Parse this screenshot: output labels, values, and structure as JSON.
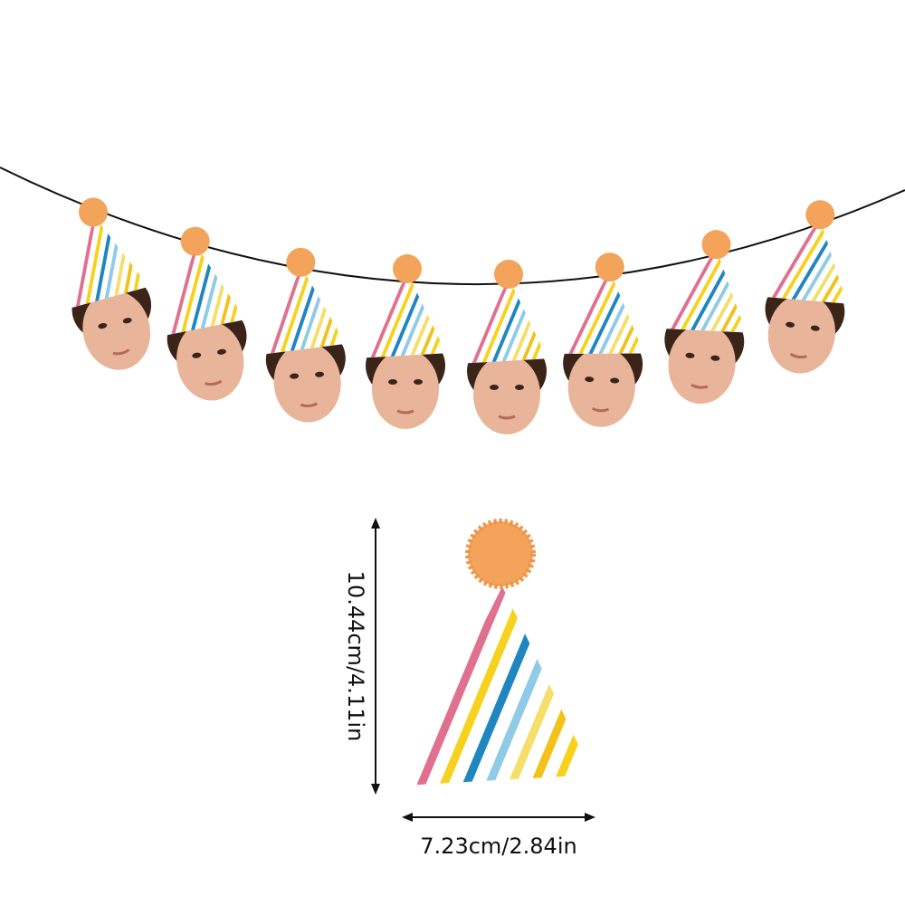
{
  "dimensions": {
    "height": "10.44cm/4.11in",
    "width": "7.23cm/2.84in"
  }
}
